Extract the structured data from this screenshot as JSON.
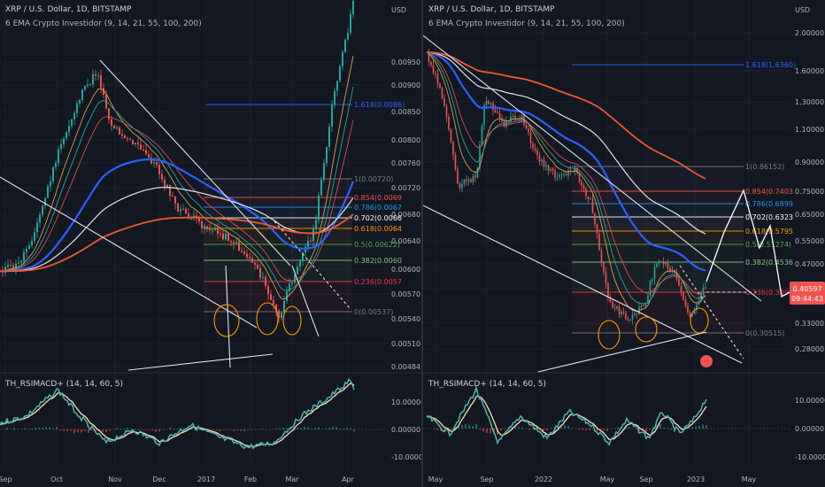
{
  "colors": {
    "background": "#131722",
    "grid": "#1e222d",
    "axis_text": "#b2b5be",
    "candle_up": "#26a69a",
    "candle_down": "#ef5350",
    "ema_fast": "#d4a24c",
    "ema_mid": "#26a69a",
    "ema_blue": "#2962ff",
    "ema_white": "#e0e3eb",
    "ema_red": "#f0582f",
    "fib_1": "#787b86",
    "fib_0854": "#ef5350",
    "fib_0786": "#2196f3",
    "fib_0702": "#ffffff",
    "fib_0618": "#ff9800",
    "fib_05": "#4caf50",
    "fib_0382": "#81c784",
    "fib_0236": "#f23645",
    "fib_0": "#787b86",
    "fib_1618": "#2962ff",
    "trendline": "#e0e3eb",
    "circle": "#ff9800",
    "osc_fast": "#4db6ac",
    "osc_slow": "#ffe0b2",
    "price_tag": "#ef5350"
  },
  "chart_data": [
    {
      "type": "line",
      "panel": "left",
      "title": "XRP / U.S. Dollar, 1D, BITSTAMP",
      "indicator": "6 EMA Crypto Investidor (9, 14, 21, 55, 100, 200)",
      "currency": "USD",
      "y_scale": "log",
      "y_ticks": [
        "0.00950",
        "0.00900",
        "0.00850",
        "0.00800",
        "0.00760",
        "0.00720",
        "0.00680",
        "0.00640",
        "0.00600",
        "0.00570",
        "0.00540",
        "0.00510",
        "0.00484"
      ],
      "x_ticks": [
        "Sep",
        "Oct",
        "Nov",
        "Dec",
        "2017",
        "Feb",
        "Mar",
        "Apr"
      ],
      "fib_levels": [
        {
          "label": "1.618(0.0086)",
          "value": 0.0086
        },
        {
          "label": "1(0.00720)",
          "value": 0.0072
        },
        {
          "label": "0.854(0.0069",
          "value": 0.0069
        },
        {
          "label": "0.786(0.0067",
          "value": 0.0067
        },
        {
          "label": "0.702(0.0066",
          "value": 0.0066
        },
        {
          "label": "0.618(0.0064",
          "value": 0.0064
        },
        {
          "label": "0.5(0.00622)",
          "value": 0.00622
        },
        {
          "label": "0.382(0.0060",
          "value": 0.006
        },
        {
          "label": "0.236(0.0057",
          "value": 0.0057
        },
        {
          "label": "0(0.00537)",
          "value": 0.00537
        }
      ],
      "price_path": {
        "x": [
          "Aug 20",
          "Sep 1",
          "Sep 15",
          "Oct 1",
          "Oct 20",
          "Oct 31",
          "Nov 15",
          "Dec 1",
          "Dec 15",
          "2017",
          "Jan 15",
          "Feb 1",
          "Feb 15",
          "Mar 1",
          "Mar 15",
          "Apr 1",
          "Apr 5"
        ],
        "y": [
          0.0061,
          0.006,
          0.0066,
          0.0082,
          0.009,
          0.0093,
          0.008,
          0.0075,
          0.0068,
          0.0066,
          0.0064,
          0.0062,
          0.0059,
          0.0053,
          0.0064,
          0.0085,
          0.01
        ]
      },
      "oscillator": {
        "title": "TH_RSIMACD+ (14, 14, 60, 5)",
        "y_ticks": [
          "10.00000",
          "0.00000",
          "-10.00000"
        ],
        "ylim": [
          -12,
          12
        ]
      }
    },
    {
      "type": "line",
      "panel": "right",
      "title": "XRP / U.S. Dollar, 1D, BITSTAMP",
      "indicator": "6 EMA Crypto Investidor (9, 14, 21, 55, 100, 200)",
      "currency": "USD",
      "y_scale": "log",
      "y_ticks": [
        "2.00000",
        "1.60000",
        "1.30000",
        "1.10000",
        "0.90000",
        "0.75000",
        "0.65000",
        "0.55000",
        "0.47000",
        "0.40000",
        "0.33000",
        "0.28000"
      ],
      "x_ticks": [
        "May",
        "Sep",
        "2022",
        "May",
        "Sep",
        "2023",
        "May"
      ],
      "fib_levels": [
        {
          "label": "1.618(1.6360)",
          "value": 1.636
        },
        {
          "label": "1(0.86152)",
          "value": 0.86152
        },
        {
          "label": "0.854(0.7403",
          "value": 0.7403
        },
        {
          "label": "0.786(0.6899",
          "value": 0.6899
        },
        {
          "label": "0.702(0.6323",
          "value": 0.6323
        },
        {
          "label": "0.618(0.5795",
          "value": 0.5795
        },
        {
          "label": "0.5(0.51274)",
          "value": 0.51274
        },
        {
          "label": "0.382(0.4536",
          "value": 0.4536
        },
        {
          "label": "0.236(0.3898",
          "value": 0.3898
        },
        {
          "label": "0(0.30515)",
          "value": 0.30515
        }
      ],
      "last_price": "0.40597",
      "countdown": "09:44:43",
      "price_path": {
        "x": [
          "2021-04",
          "2021-05",
          "2021-06",
          "2021-07",
          "2021-09",
          "2021-10",
          "2021-11",
          "2021-12",
          "2022-01",
          "2022-03",
          "2022-04",
          "2022-05",
          "2022-06",
          "2022-07",
          "2022-09",
          "2022-10",
          "2022-11",
          "2022-12",
          "2023-01"
        ],
        "y": [
          1.55,
          1.25,
          0.75,
          0.6,
          1.1,
          1.05,
          1.15,
          0.85,
          0.8,
          0.75,
          0.65,
          0.4,
          0.33,
          0.35,
          0.48,
          0.47,
          0.37,
          0.34,
          0.4
        ]
      },
      "projection_path": {
        "x": [
          "2023-01",
          "2023-02",
          "2023-03",
          "2023-04",
          "2023-05"
        ],
        "y": [
          0.4,
          0.47,
          0.74,
          0.51,
          0.54
        ]
      },
      "oscillator": {
        "title": "TH_RSIMACD+ (14, 14, 60, 5)",
        "y_ticks": [
          "10.00000",
          "0.00000",
          "-10.00000"
        ],
        "ylim": [
          -12,
          12
        ]
      }
    }
  ]
}
